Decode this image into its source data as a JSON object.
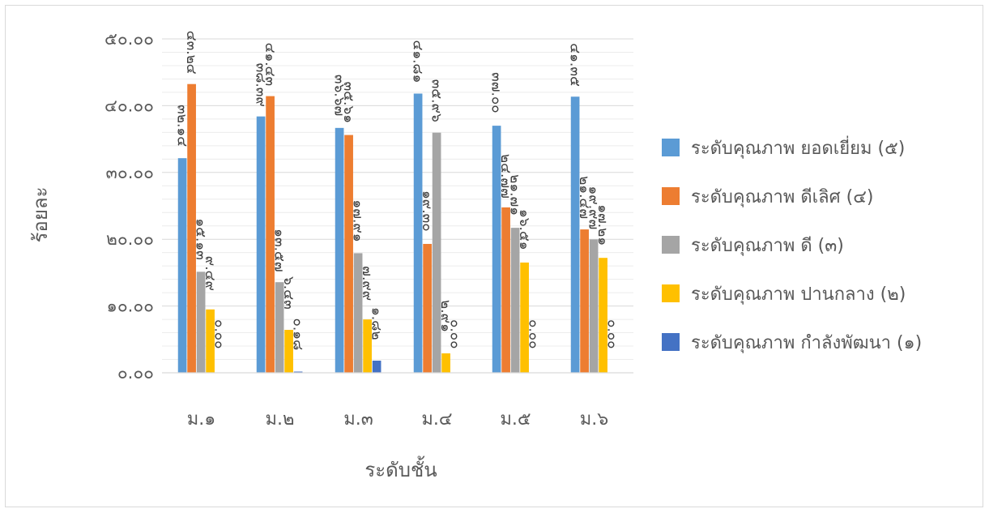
{
  "chart_data": {
    "type": "bar",
    "title": "",
    "xlabel": "ระดับชั้น",
    "ylabel": "ร้อยละ",
    "ylim": [
      0,
      50
    ],
    "yticks": [
      0,
      10,
      20,
      30,
      40,
      50
    ],
    "ytick_labels": [
      "๐.๐๐",
      "๑๐.๐๐",
      "๒๐.๐๐",
      "๓๐.๐๐",
      "๔๐.๐๐",
      "๕๐.๐๐"
    ],
    "grid": true,
    "legend_position": "right",
    "categories": [
      "ม.๑",
      "ม.๒",
      "ม.๓",
      "ม.๔",
      "ม.๕",
      "ม.๖"
    ],
    "series": [
      {
        "name": "ระดับคุณภาพ ยอดเยี่ยม (๕)",
        "color": "#5b9bd5",
        "values": [
          32.14,
          38.39,
          36.67,
          41.81,
          37.0,
          41.35
        ],
        "labels": [
          "๓๒.๑๔",
          "๓๘.๓๙",
          "๓๖.๖๗",
          "๔๑.๘๑",
          "๓๗.๐๐",
          "๔๑.๓๕"
        ]
      },
      {
        "name": "ระดับคุณภาพ ดีเลิศ (๔)",
        "color": "#ed7d31",
        "values": [
          43.24,
          41.43,
          35.61,
          19.3,
          24.77,
          21.47
        ],
        "labels": [
          "๔๓.๒๔",
          "๔๑.๔๓",
          "๓๕.๖๑",
          "๑๙.๓๐",
          "๒๔.๗๗",
          "๒๑.๔๗"
        ]
      },
      {
        "name": "ระดับคุณภาพ ดี (๓)",
        "color": "#a5a5a5",
        "values": [
          15.13,
          13.57,
          17.91,
          35.96,
          21.71,
          19.97
        ],
        "labels": [
          "๑๕.๑๓",
          "๑๓.๕๗",
          "๑๗.๙๑",
          "๓๕.๙๖",
          "๒๑.๗๑",
          "๑๙.๙๗"
        ]
      },
      {
        "name": "ระดับคุณภาพ ปานกลาง (๒)",
        "color": "#ffc000",
        "values": [
          9.49,
          6.43,
          7.99,
          2.91,
          16.51,
          17.21
        ],
        "labels": [
          "๙.๔๙",
          "๖.๔๓",
          "๗.๙๙",
          "๒.๙๑",
          "๑๖.๕๑",
          "๑๗.๒๑"
        ]
      },
      {
        "name": "ระดับคุณภาพ กำลังพัฒนา (๑)",
        "color": "#4472c4",
        "values": [
          0.0,
          0.18,
          1.82,
          0.0,
          0.0,
          0.0
        ],
        "labels": [
          "๐.๐๐",
          "๐.๑๘",
          "๑.๘๒",
          "๐.๐๐",
          "๐.๐๐",
          "๐.๐๐"
        ]
      }
    ]
  }
}
